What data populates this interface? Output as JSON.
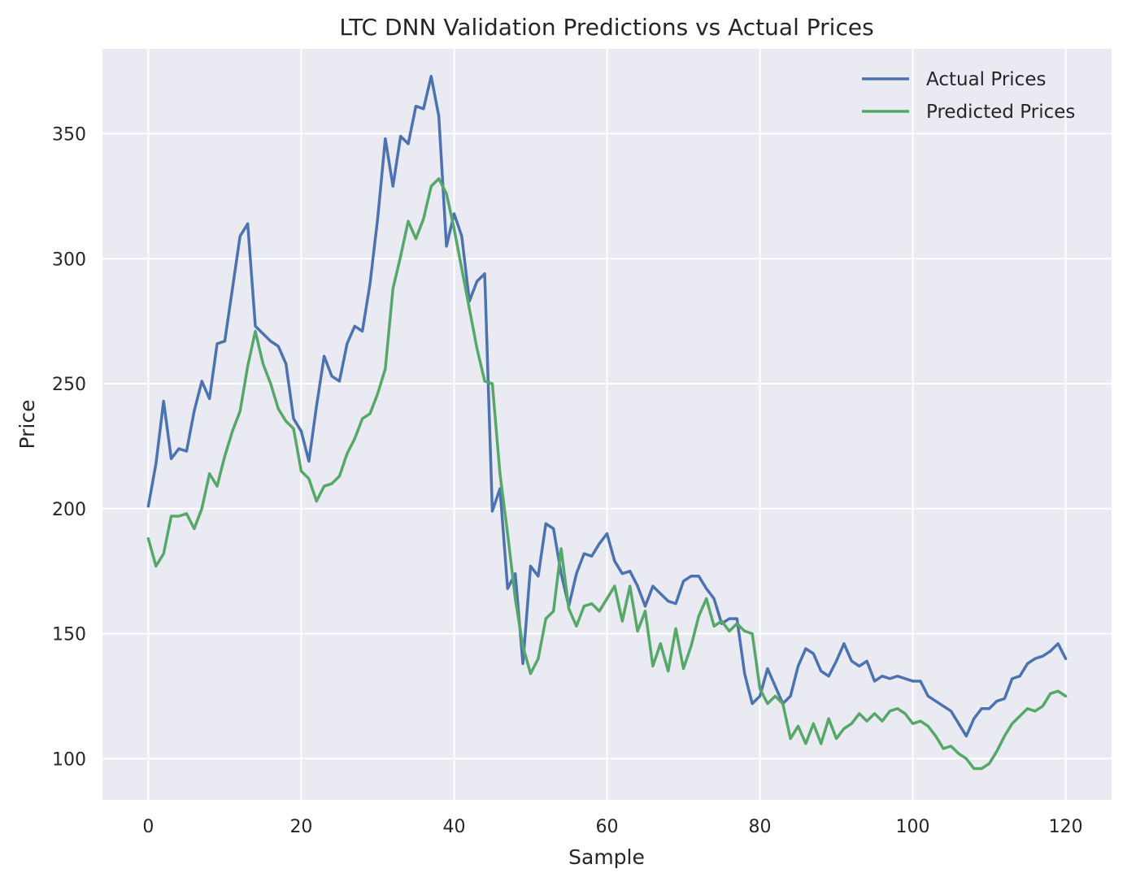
{
  "chart_data": {
    "type": "line",
    "title": "LTC DNN Validation Predictions vs Actual Prices",
    "xlabel": "Sample",
    "ylabel": "Price",
    "xlim": [
      -6,
      126
    ],
    "ylim": [
      83.5,
      384
    ],
    "xticks": [
      0,
      20,
      40,
      60,
      80,
      100,
      120
    ],
    "yticks": [
      100,
      150,
      200,
      250,
      300,
      350
    ],
    "grid": true,
    "legend_position": "top-right",
    "series": [
      {
        "name": "Actual Prices",
        "color": "#4c72b0",
        "values": [
          201,
          218,
          243,
          220,
          224,
          223,
          239,
          251,
          244,
          266,
          267,
          288,
          309,
          314,
          273,
          270,
          267,
          265,
          258,
          236,
          231,
          219,
          241,
          261,
          253,
          251,
          266,
          273,
          271,
          290,
          316,
          348,
          329,
          349,
          346,
          361,
          360,
          373,
          357,
          305,
          318,
          309,
          283,
          291,
          294,
          199,
          208,
          168,
          174,
          138,
          177,
          173,
          194,
          192,
          174,
          161,
          174,
          182,
          181,
          186,
          190,
          179,
          174,
          175,
          169,
          161,
          169,
          166,
          163,
          162,
          171,
          173,
          173,
          168,
          164,
          154,
          156,
          156,
          134,
          122,
          125,
          136,
          129,
          122,
          125,
          137,
          144,
          142,
          135,
          133,
          139,
          146,
          139,
          137,
          139,
          131,
          133,
          132,
          133,
          132,
          131,
          131,
          125,
          123,
          121,
          119,
          114,
          109,
          116,
          120,
          120,
          123,
          124,
          132,
          133,
          138,
          140,
          141,
          143,
          146,
          140
        ]
      },
      {
        "name": "Predicted Prices",
        "color": "#55a868",
        "values": [
          188,
          177,
          182,
          197,
          197,
          198,
          192,
          200,
          214,
          209,
          221,
          231,
          239,
          257,
          271,
          258,
          250,
          240,
          235,
          232,
          215,
          212,
          203,
          209,
          210,
          213,
          222,
          228,
          236,
          238,
          246,
          256,
          288,
          301,
          315,
          308,
          316,
          329,
          332,
          326,
          312,
          296,
          280,
          264,
          251,
          250,
          214,
          190,
          164,
          145,
          134,
          140,
          156,
          159,
          184,
          160,
          153,
          161,
          162,
          159,
          164,
          169,
          155,
          169,
          151,
          159,
          137,
          146,
          135,
          152,
          136,
          145,
          157,
          164,
          153,
          155,
          151,
          154,
          151,
          150,
          128,
          122,
          125,
          122,
          108,
          113,
          106,
          114,
          106,
          116,
          108,
          112,
          114,
          118,
          115,
          118,
          115,
          119,
          120,
          118,
          114,
          115,
          113,
          109,
          104,
          105,
          102,
          100,
          96,
          96,
          98,
          103,
          109,
          114,
          117,
          120,
          119,
          121,
          126,
          127,
          125
        ]
      }
    ]
  }
}
